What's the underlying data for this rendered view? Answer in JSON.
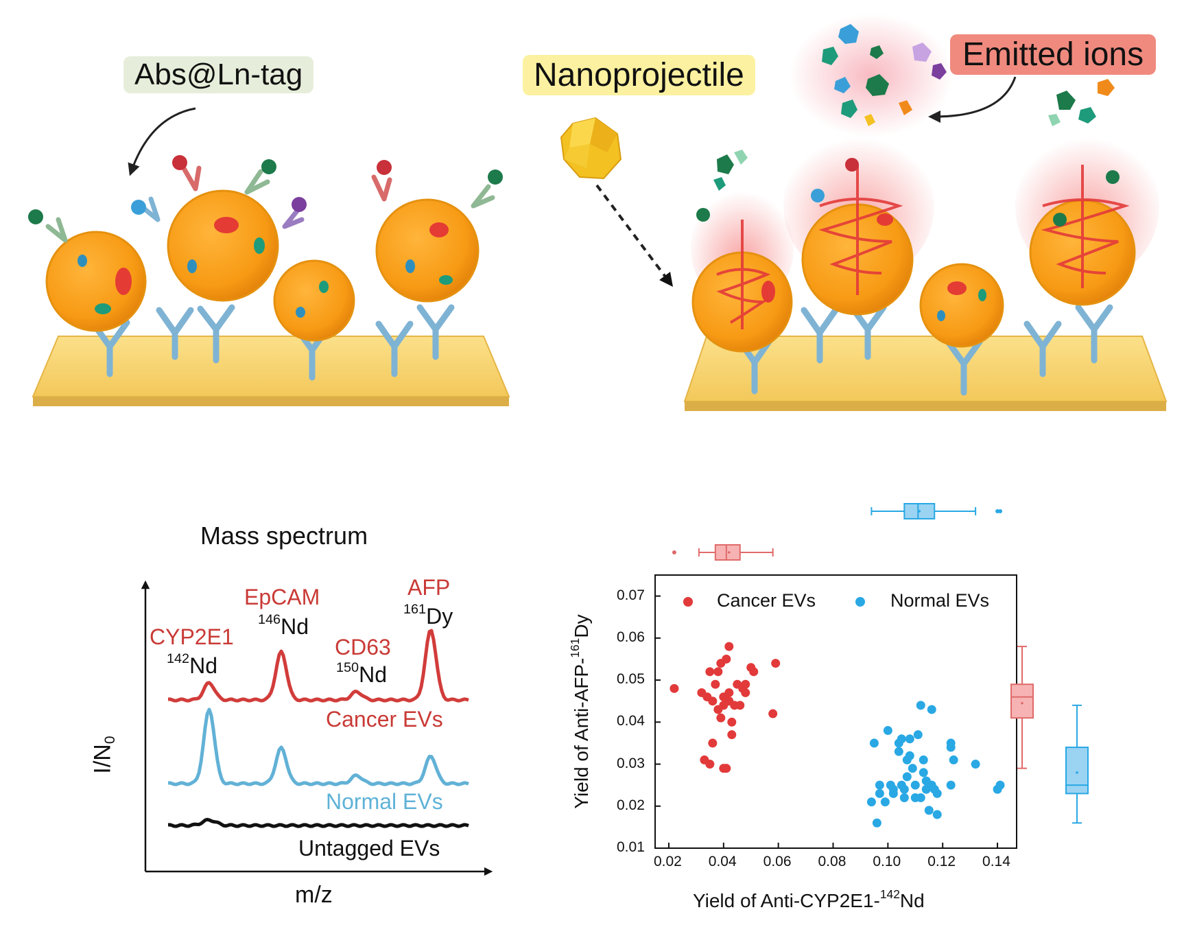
{
  "labels": {
    "abs_tag": "Abs@Ln-tag",
    "nanoprojectile": "Nanoprojectile",
    "emitted_ions": "Emitted ions"
  },
  "spectrum": {
    "title": "Mass spectrum",
    "ylabel": "I/N",
    "ylabel_sub": "0",
    "xlabel": "m/z",
    "peaks": [
      {
        "marker": "CYP2E1",
        "iso_mass": "142",
        "iso_el": "Nd"
      },
      {
        "marker": "EpCAM",
        "iso_mass": "146",
        "iso_el": "Nd"
      },
      {
        "marker": "CD63",
        "iso_mass": "150",
        "iso_el": "Nd"
      },
      {
        "marker": "AFP",
        "iso_mass": "161",
        "iso_el": "Dy"
      }
    ],
    "traces": {
      "cancer": "Cancer EVs",
      "normal": "Normal EVs",
      "untagged": "Untagged EVs"
    },
    "colors": {
      "cancer": "#d13c3a",
      "normal": "#62b1d6",
      "untagged": "#111111"
    }
  },
  "chart_data": {
    "type": "scatter",
    "xlabel_pre": "Yield of Anti-CYP2E1-",
    "xlabel_sup": "142",
    "xlabel_post": "Nd",
    "ylabel_pre": "Yield of Anti-AFP-",
    "ylabel_sup": "161",
    "ylabel_post": "Dy",
    "xlim": [
      0.015,
      0.147
    ],
    "ylim": [
      0.01,
      0.075
    ],
    "xticks": [
      "0.02",
      "0.04",
      "0.06",
      "0.08",
      "0.10",
      "0.12",
      "0.14"
    ],
    "yticks": [
      "0.01",
      "0.02",
      "0.03",
      "0.04",
      "0.05",
      "0.06",
      "0.07"
    ],
    "legend_position": "top",
    "series": [
      {
        "name": "Cancer EVs",
        "color": "#e23a3a",
        "points": [
          [
            0.022,
            0.048
          ],
          [
            0.032,
            0.047
          ],
          [
            0.034,
            0.046
          ],
          [
            0.035,
            0.052
          ],
          [
            0.036,
            0.035
          ],
          [
            0.036,
            0.045
          ],
          [
            0.037,
            0.049
          ],
          [
            0.038,
            0.043
          ],
          [
            0.039,
            0.054
          ],
          [
            0.039,
            0.041
          ],
          [
            0.04,
            0.046
          ],
          [
            0.04,
            0.044
          ],
          [
            0.041,
            0.055
          ],
          [
            0.041,
            0.029
          ],
          [
            0.042,
            0.058
          ],
          [
            0.042,
            0.045
          ],
          [
            0.042,
            0.047
          ],
          [
            0.043,
            0.04
          ],
          [
            0.043,
            0.037
          ],
          [
            0.044,
            0.044
          ],
          [
            0.045,
            0.049
          ],
          [
            0.046,
            0.044
          ],
          [
            0.047,
            0.048
          ],
          [
            0.048,
            0.047
          ],
          [
            0.048,
            0.049
          ],
          [
            0.05,
            0.053
          ],
          [
            0.051,
            0.052
          ],
          [
            0.058,
            0.042
          ],
          [
            0.059,
            0.054
          ],
          [
            0.033,
            0.031
          ],
          [
            0.035,
            0.03
          ],
          [
            0.04,
            0.029
          ],
          [
            0.038,
            0.052
          ]
        ],
        "box_x": {
          "min": 0.031,
          "q1": 0.037,
          "median": 0.041,
          "q3": 0.046,
          "max": 0.058,
          "mean": 0.042,
          "outliers": [
            0.022
          ]
        },
        "box_y": {
          "min": 0.029,
          "q1": 0.041,
          "median": 0.046,
          "q3": 0.049,
          "max": 0.058,
          "mean": 0.0445,
          "outliers": []
        }
      },
      {
        "name": "Normal EVs",
        "color": "#29a8e4",
        "points": [
          [
            0.094,
            0.021
          ],
          [
            0.095,
            0.035
          ],
          [
            0.096,
            0.016
          ],
          [
            0.097,
            0.023
          ],
          [
            0.097,
            0.025
          ],
          [
            0.099,
            0.021
          ],
          [
            0.1,
            0.038
          ],
          [
            0.101,
            0.025
          ],
          [
            0.102,
            0.023
          ],
          [
            0.102,
            0.024
          ],
          [
            0.104,
            0.035
          ],
          [
            0.104,
            0.033
          ],
          [
            0.105,
            0.036
          ],
          [
            0.105,
            0.025
          ],
          [
            0.106,
            0.022
          ],
          [
            0.106,
            0.024
          ],
          [
            0.107,
            0.031
          ],
          [
            0.107,
            0.027
          ],
          [
            0.108,
            0.032
          ],
          [
            0.108,
            0.036
          ],
          [
            0.109,
            0.029
          ],
          [
            0.11,
            0.022
          ],
          [
            0.11,
            0.025
          ],
          [
            0.111,
            0.037
          ],
          [
            0.112,
            0.044
          ],
          [
            0.112,
            0.022
          ],
          [
            0.113,
            0.031
          ],
          [
            0.113,
            0.028
          ],
          [
            0.114,
            0.024
          ],
          [
            0.114,
            0.026
          ],
          [
            0.115,
            0.019
          ],
          [
            0.116,
            0.043
          ],
          [
            0.116,
            0.025
          ],
          [
            0.117,
            0.024
          ],
          [
            0.118,
            0.018
          ],
          [
            0.118,
            0.023
          ],
          [
            0.123,
            0.025
          ],
          [
            0.123,
            0.034
          ],
          [
            0.123,
            0.035
          ],
          [
            0.124,
            0.031
          ],
          [
            0.132,
            0.03
          ],
          [
            0.14,
            0.024
          ],
          [
            0.141,
            0.025
          ]
        ],
        "box_x": {
          "min": 0.094,
          "q1": 0.106,
          "median": 0.111,
          "q3": 0.117,
          "max": 0.132,
          "mean": 0.1115,
          "outliers": [
            0.14,
            0.141
          ]
        },
        "box_y": {
          "min": 0.016,
          "q1": 0.023,
          "median": 0.025,
          "q3": 0.034,
          "max": 0.044,
          "mean": 0.028,
          "outliers": []
        }
      }
    ]
  }
}
